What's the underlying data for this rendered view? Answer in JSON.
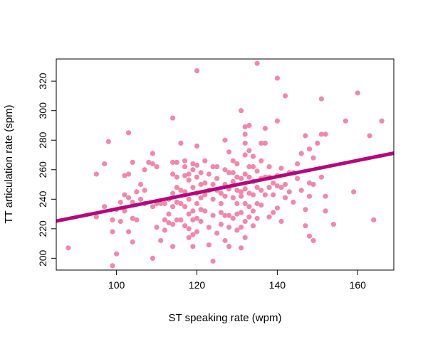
{
  "chart_data": {
    "type": "scatter",
    "title": "",
    "xlabel": "ST speaking rate (wpm)",
    "ylabel": "TT articulation rate (spm)",
    "xlim": [
      85,
      169
    ],
    "ylim": [
      192,
      335
    ],
    "xticks": [
      100,
      120,
      140,
      160
    ],
    "yticks": [
      200,
      220,
      240,
      260,
      280,
      300,
      320
    ],
    "grid": false,
    "legend": "none",
    "point_color": "#F288A8",
    "line_color": "#B5087A",
    "trend_line": {
      "x": [
        85,
        169
      ],
      "y": [
        225.2,
        271.2
      ]
    },
    "points": [
      [
        88,
        207
      ],
      [
        95,
        257
      ],
      [
        95,
        228
      ],
      [
        97,
        264
      ],
      [
        97,
        235
      ],
      [
        98,
        279
      ],
      [
        99,
        218
      ],
      [
        99,
        226
      ],
      [
        99,
        195
      ],
      [
        100,
        203
      ],
      [
        100,
        233
      ],
      [
        101,
        238
      ],
      [
        101,
        225
      ],
      [
        102,
        243
      ],
      [
        102,
        256
      ],
      [
        102,
        232
      ],
      [
        103,
        285
      ],
      [
        103,
        257
      ],
      [
        103,
        218
      ],
      [
        103,
        241
      ],
      [
        104,
        238
      ],
      [
        104,
        265
      ],
      [
        104,
        227
      ],
      [
        104,
        211
      ],
      [
        104,
        236
      ],
      [
        105,
        226
      ],
      [
        105,
        245
      ],
      [
        106,
        240
      ],
      [
        106,
        250
      ],
      [
        107,
        246
      ],
      [
        107,
        260
      ],
      [
        107,
        237
      ],
      [
        108,
        265
      ],
      [
        109,
        271
      ],
      [
        109,
        264
      ],
      [
        109,
        200
      ],
      [
        109,
        235
      ],
      [
        110,
        262
      ],
      [
        110,
        221
      ],
      [
        110,
        237
      ],
      [
        111,
        237
      ],
      [
        111,
        212
      ],
      [
        112,
        237
      ],
      [
        112,
        219
      ],
      [
        112,
        226
      ],
      [
        113,
        240
      ],
      [
        113,
        224
      ],
      [
        113,
        230
      ],
      [
        114,
        295
      ],
      [
        114,
        265
      ],
      [
        114,
        257
      ],
      [
        114,
        244
      ],
      [
        114,
        235
      ],
      [
        114,
        223
      ],
      [
        114,
        208
      ],
      [
        115,
        265
      ],
      [
        115,
        255
      ],
      [
        115,
        248
      ],
      [
        115,
        238
      ],
      [
        115,
        226
      ],
      [
        116,
        278
      ],
      [
        116,
        246
      ],
      [
        116,
        237
      ],
      [
        116,
        226
      ],
      [
        117,
        266
      ],
      [
        117,
        262
      ],
      [
        117,
        256
      ],
      [
        117,
        245
      ],
      [
        117,
        235
      ],
      [
        117,
        222
      ],
      [
        118,
        257
      ],
      [
        118,
        253
      ],
      [
        118,
        240
      ],
      [
        118,
        230
      ],
      [
        118,
        220
      ],
      [
        118,
        214
      ],
      [
        119,
        264
      ],
      [
        119,
        260
      ],
      [
        119,
        248
      ],
      [
        119,
        232
      ],
      [
        119,
        226
      ],
      [
        119,
        216
      ],
      [
        119,
        208
      ],
      [
        120,
        327
      ],
      [
        120,
        276
      ],
      [
        120,
        263
      ],
      [
        120,
        255
      ],
      [
        120,
        244
      ],
      [
        120,
        237
      ],
      [
        120,
        227
      ],
      [
        120,
        218
      ],
      [
        121,
        258
      ],
      [
        121,
        250
      ],
      [
        121,
        241
      ],
      [
        121,
        233
      ],
      [
        121,
        225
      ],
      [
        122,
        266
      ],
      [
        122,
        251
      ],
      [
        122,
        243
      ],
      [
        122,
        232
      ],
      [
        123,
        257
      ],
      [
        123,
        246
      ],
      [
        123,
        221
      ],
      [
        123,
        209
      ],
      [
        124,
        262
      ],
      [
        124,
        250
      ],
      [
        124,
        240
      ],
      [
        124,
        229
      ],
      [
        124,
        198
      ],
      [
        125,
        262
      ],
      [
        125,
        254
      ],
      [
        125,
        246
      ],
      [
        125,
        217
      ],
      [
        126,
        244
      ],
      [
        126,
        237
      ],
      [
        126,
        231
      ],
      [
        126,
        223
      ],
      [
        127,
        280
      ],
      [
        127,
        260
      ],
      [
        127,
        250
      ],
      [
        127,
        242
      ],
      [
        127,
        229
      ],
      [
        127,
        212
      ],
      [
        128,
        272
      ],
      [
        128,
        258
      ],
      [
        128,
        247
      ],
      [
        128,
        229
      ],
      [
        128,
        221
      ],
      [
        128,
        208
      ],
      [
        129,
        266
      ],
      [
        129,
        258
      ],
      [
        129,
        252
      ],
      [
        129,
        241
      ],
      [
        129,
        227
      ],
      [
        130,
        264
      ],
      [
        130,
        255
      ],
      [
        130,
        246
      ],
      [
        130,
        237
      ],
      [
        130,
        230
      ],
      [
        130,
        219
      ],
      [
        131,
        300
      ],
      [
        131,
        254
      ],
      [
        131,
        245
      ],
      [
        131,
        242
      ],
      [
        131,
        231
      ],
      [
        131,
        221
      ],
      [
        131,
        207
      ],
      [
        132,
        289
      ],
      [
        132,
        284
      ],
      [
        132,
        278
      ],
      [
        132,
        270
      ],
      [
        132,
        257
      ],
      [
        132,
        247
      ],
      [
        132,
        237
      ],
      [
        132,
        225
      ],
      [
        132,
        214
      ],
      [
        133,
        290
      ],
      [
        133,
        273
      ],
      [
        133,
        262
      ],
      [
        133,
        255
      ],
      [
        133,
        244
      ],
      [
        133,
        235
      ],
      [
        133,
        228
      ],
      [
        134,
        269
      ],
      [
        134,
        262
      ],
      [
        134,
        252
      ],
      [
        134,
        243
      ],
      [
        134,
        232
      ],
      [
        134,
        222
      ],
      [
        135,
        332
      ],
      [
        135,
        259
      ],
      [
        135,
        248
      ],
      [
        135,
        237
      ],
      [
        135,
        227
      ],
      [
        136,
        278
      ],
      [
        136,
        266
      ],
      [
        136,
        254
      ],
      [
        136,
        246
      ],
      [
        136,
        236
      ],
      [
        137,
        288
      ],
      [
        137,
        278
      ],
      [
        137,
        255
      ],
      [
        137,
        243
      ],
      [
        138,
        262
      ],
      [
        138,
        255
      ],
      [
        138,
        248
      ],
      [
        138,
        228
      ],
      [
        139,
        251
      ],
      [
        139,
        243
      ],
      [
        139,
        231
      ],
      [
        140,
        322
      ],
      [
        140,
        293
      ],
      [
        140,
        256
      ],
      [
        140,
        249
      ],
      [
        140,
        234
      ],
      [
        141,
        261
      ],
      [
        141,
        248
      ],
      [
        141,
        225
      ],
      [
        142,
        310
      ],
      [
        142,
        250
      ],
      [
        142,
        241
      ],
      [
        143,
        258
      ],
      [
        143,
        245
      ],
      [
        144,
        258
      ],
      [
        144,
        238
      ],
      [
        145,
        264
      ],
      [
        145,
        254
      ],
      [
        146,
        271
      ],
      [
        146,
        246
      ],
      [
        147,
        283
      ],
      [
        147,
        233
      ],
      [
        147,
        222
      ],
      [
        148,
        274
      ],
      [
        148,
        251
      ],
      [
        148,
        242
      ],
      [
        148,
        215
      ],
      [
        149,
        268
      ],
      [
        149,
        250
      ],
      [
        149,
        212
      ],
      [
        150,
        278
      ],
      [
        151,
        308
      ],
      [
        151,
        284
      ],
      [
        151,
        255
      ],
      [
        152,
        284
      ],
      [
        152,
        242
      ],
      [
        152,
        232
      ],
      [
        154,
        223
      ],
      [
        157,
        293
      ],
      [
        159,
        245
      ],
      [
        160,
        312
      ],
      [
        163,
        283
      ],
      [
        164,
        226
      ],
      [
        166,
        293
      ]
    ]
  }
}
